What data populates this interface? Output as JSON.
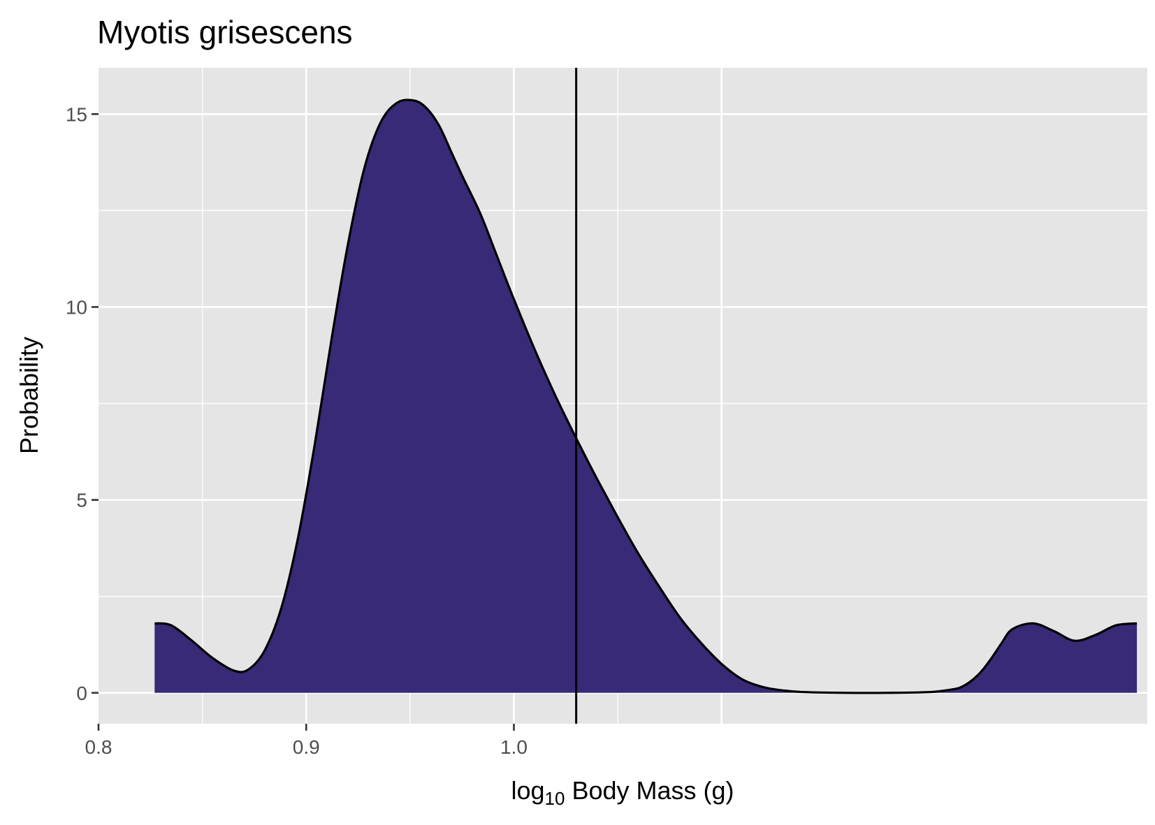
{
  "chart_data": {
    "type": "area",
    "title": "Myotis grisescens",
    "xlabel": {
      "prefix": "log",
      "subscript": "10",
      "suffix": " Body Mass (g)"
    },
    "ylabel": "Probability",
    "xlim": [
      0.8,
      1.305
    ],
    "ylim": [
      -0.8,
      16.2
    ],
    "x_ticks": [
      {
        "value": 0.8,
        "label": "0.8"
      },
      {
        "value": 0.9,
        "label": "0.9"
      },
      {
        "value": 1.0,
        "label": "1.0"
      }
    ],
    "x_minor_gridlines": [
      0.85,
      0.95,
      1.05
    ],
    "x_major_gridlines": [
      0.9,
      1.0,
      1.1
    ],
    "y_ticks": [
      {
        "value": 0,
        "label": "0"
      },
      {
        "value": 5,
        "label": "5"
      },
      {
        "value": 10,
        "label": "10"
      },
      {
        "value": 15,
        "label": "15"
      }
    ],
    "y_minor_gridlines": [
      2.5,
      7.5,
      12.5
    ],
    "grid": true,
    "vline_x": 1.03,
    "fill_color": "#382a76",
    "line_color": "#000000",
    "panel_color": "#e5e5e5",
    "series": [
      {
        "x": [
          0.827,
          0.835,
          0.845,
          0.855,
          0.865,
          0.872,
          0.88,
          0.888,
          0.896,
          0.904,
          0.912,
          0.92,
          0.928,
          0.936,
          0.944,
          0.952,
          0.958,
          0.964,
          0.97,
          0.976,
          0.984,
          0.992,
          1.0,
          1.01,
          1.02,
          1.03,
          1.04,
          1.05,
          1.06,
          1.07,
          1.08,
          1.09,
          1.1,
          1.11,
          1.12,
          1.13,
          1.14,
          1.16,
          1.18,
          1.2,
          1.21,
          1.215,
          1.22,
          1.225,
          1.23,
          1.235,
          1.24,
          1.25,
          1.26,
          1.27,
          1.28,
          1.29,
          1.3
        ],
        "y": [
          1.8,
          1.75,
          1.35,
          0.9,
          0.58,
          0.6,
          1.1,
          2.2,
          4.0,
          6.4,
          9.1,
          11.6,
          13.6,
          14.8,
          15.3,
          15.35,
          15.15,
          14.7,
          14.0,
          13.3,
          12.4,
          11.3,
          10.2,
          8.9,
          7.7,
          6.6,
          5.55,
          4.55,
          3.6,
          2.75,
          1.95,
          1.3,
          0.75,
          0.35,
          0.15,
          0.06,
          0.02,
          0.0,
          0.0,
          0.02,
          0.08,
          0.14,
          0.3,
          0.55,
          0.9,
          1.3,
          1.65,
          1.8,
          1.6,
          1.35,
          1.5,
          1.75,
          1.8
        ]
      }
    ]
  }
}
